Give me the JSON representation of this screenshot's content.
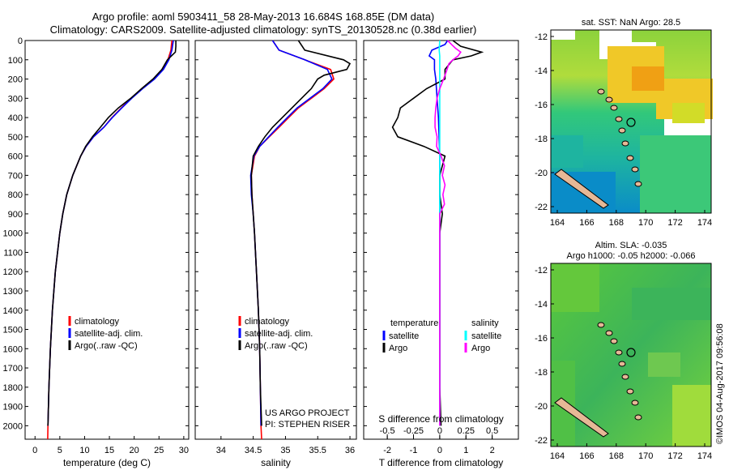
{
  "titles": {
    "line1": "Argo profile: aoml 5903411_58 28-May-2013 16.684S 168.85E (DM data)",
    "line2": "Climatology: CARS2009. Satellite-adjusted climatology: synTS_20130528.nc (0.38d earlier)"
  },
  "depth_ticks": [
    0,
    100,
    200,
    300,
    400,
    500,
    600,
    700,
    800,
    900,
    1000,
    1100,
    1200,
    1300,
    1400,
    1500,
    1600,
    1700,
    1800,
    1900,
    2000
  ],
  "colors": {
    "climatology": "#ff0000",
    "satellite": "#0000ff",
    "argo": "#000000",
    "salinity_argo": "#ff00ff",
    "salinity_sat": "#00ffff"
  },
  "chart_data": [
    {
      "type": "line",
      "xlabel": "temperature (deg C)",
      "xlim": [
        -2,
        31
      ],
      "xticks": [
        0,
        5,
        10,
        15,
        20,
        25,
        30
      ],
      "ylim": [
        2070,
        0
      ],
      "legend": [
        "climatology",
        "satellite-adj. clim.",
        "Argo(..raw -QC)"
      ],
      "series": [
        {
          "name": "climatology",
          "depth": [
            0,
            50,
            100,
            150,
            200,
            250,
            300,
            350,
            400,
            450,
            500,
            550,
            600,
            700,
            800,
            900,
            1000,
            1200,
            1400,
            1600,
            1800,
            2000,
            2070
          ],
          "values": [
            27.6,
            27.4,
            26.8,
            25.8,
            24.0,
            21.6,
            19.4,
            17.4,
            15.5,
            13.9,
            11.8,
            10.3,
            9.2,
            7.6,
            6.4,
            5.6,
            5.0,
            4.1,
            3.5,
            3.1,
            2.8,
            2.6,
            2.55
          ]
        },
        {
          "name": "satellite-adj. clim.",
          "depth": [
            0,
            50,
            100,
            150,
            200,
            250,
            300,
            350,
            400,
            450,
            500,
            550,
            600,
            700,
            800,
            900,
            1000,
            1200,
            1400,
            1600,
            1800,
            2000
          ],
          "values": [
            27.9,
            27.6,
            27.0,
            25.9,
            24.1,
            21.7,
            19.5,
            17.5,
            15.6,
            13.9,
            11.8,
            10.3,
            9.2,
            7.6,
            6.4,
            5.6,
            5.0,
            4.1,
            3.5,
            3.1,
            2.8,
            2.6
          ]
        },
        {
          "name": "Argo(..raw -QC)",
          "depth": [
            0,
            30,
            60,
            80,
            100,
            150,
            200,
            250,
            300,
            350,
            400,
            450,
            500,
            550,
            600,
            700,
            800,
            900,
            1000,
            1200,
            1400,
            1600,
            1800,
            2000
          ],
          "values": [
            28.4,
            28.4,
            28.3,
            27.5,
            26.7,
            25.6,
            23.8,
            21.5,
            19.3,
            16.8,
            14.8,
            13.2,
            11.6,
            10.2,
            9.2,
            7.6,
            6.4,
            5.6,
            5.0,
            4.1,
            3.5,
            3.1,
            2.8,
            2.6
          ]
        }
      ]
    },
    {
      "type": "line",
      "xlabel": "salinity",
      "xlim": [
        33.6,
        36.1
      ],
      "xticks": [
        34,
        34.5,
        35,
        35.5,
        36
      ],
      "ylim": [
        2070,
        0
      ],
      "legend": [
        "climatology",
        "satellite-adj. clim.",
        "Argo(..raw -QC)"
      ],
      "annotation": [
        "US ARGO PROJECT",
        "PI: STEPHEN RISER"
      ],
      "series": [
        {
          "name": "climatology",
          "depth": [
            0,
            50,
            100,
            150,
            200,
            250,
            300,
            350,
            400,
            450,
            500,
            550,
            600,
            700,
            800,
            900,
            1000,
            1200,
            1400,
            1600,
            1800,
            2000,
            2070
          ],
          "values": [
            34.8,
            34.9,
            35.3,
            35.7,
            35.75,
            35.6,
            35.4,
            35.2,
            35.05,
            34.9,
            34.75,
            34.6,
            34.52,
            34.47,
            34.48,
            34.5,
            34.52,
            34.55,
            34.58,
            34.6,
            34.61,
            34.62,
            34.63
          ]
        },
        {
          "name": "satellite-adj. clim.",
          "depth": [
            0,
            50,
            100,
            150,
            200,
            250,
            300,
            350,
            400,
            450,
            500,
            550,
            600,
            700,
            800,
            900,
            1000,
            1200,
            1400,
            1600,
            1800,
            2000
          ],
          "values": [
            34.8,
            34.9,
            35.3,
            35.65,
            35.72,
            35.58,
            35.38,
            35.18,
            35.03,
            34.88,
            34.74,
            34.6,
            34.51,
            34.46,
            34.47,
            34.5,
            34.52,
            34.55,
            34.58,
            34.6,
            34.61,
            34.62
          ]
        },
        {
          "name": "Argo(..raw -QC)",
          "depth": [
            0,
            50,
            100,
            120,
            150,
            180,
            200,
            250,
            300,
            350,
            400,
            450,
            500,
            550,
            600,
            700,
            800,
            900,
            1000,
            1200,
            1400,
            1600,
            1800,
            2000
          ],
          "values": [
            35.2,
            35.3,
            35.9,
            36.0,
            35.95,
            35.6,
            35.5,
            35.4,
            35.25,
            35.1,
            34.95,
            34.8,
            34.68,
            34.58,
            34.5,
            34.47,
            34.48,
            34.5,
            34.52,
            34.55,
            34.58,
            34.6,
            34.61,
            34.63
          ]
        }
      ]
    },
    {
      "type": "line",
      "xlabel": "T difference from climatology",
      "xlabel_top": "S difference from climatology",
      "xlim": [
        -2.9,
        3.0
      ],
      "xticks": [
        -2,
        -1,
        0,
        1,
        2
      ],
      "top_ticks": [
        -0.5,
        -0.25,
        0,
        0.25,
        0.5
      ],
      "top_tick_labels": [
        "-0.5",
        "-0.25",
        "0",
        "0.25",
        "0.5"
      ],
      "ylim": [
        2070,
        0
      ],
      "legend_headers": [
        "temperature",
        "salinity"
      ],
      "legend_left": [
        "satellite",
        "Argo"
      ],
      "legend_right": [
        "satellite",
        "Argo"
      ],
      "series": [
        {
          "name": "temperature satellite",
          "depth": [
            0,
            20,
            50,
            80,
            100,
            150,
            200,
            300,
            400,
            600,
            1000,
            1500,
            2000
          ],
          "values": [
            0.3,
            0.2,
            -0.3,
            -0.4,
            -0.2,
            -0.2,
            -0.15,
            -0.1,
            -0.05,
            0,
            0,
            0,
            0
          ]
        },
        {
          "name": "temperature Argo",
          "depth": [
            0,
            30,
            60,
            80,
            100,
            150,
            200,
            250,
            300,
            350,
            400,
            450,
            500,
            550,
            600,
            700,
            800,
            900,
            1000,
            1500,
            1800,
            2000
          ],
          "values": [
            0.5,
            0.8,
            1.6,
            1.2,
            0.5,
            0.2,
            0.2,
            -0.5,
            -1.0,
            -1.5,
            -1.6,
            -1.8,
            -1.6,
            -0.6,
            0.2,
            0.0,
            0.0,
            0.1,
            0.0,
            0.0,
            0.0,
            0.05
          ]
        },
        {
          "name": "salinity satellite",
          "depth": [
            0,
            50,
            80,
            100,
            150,
            200,
            300,
            400,
            600,
            800,
            1000,
            1500,
            2000
          ],
          "values": [
            0.0,
            -0.02,
            0.0,
            0.0,
            0.0,
            0.0,
            0.0,
            0.0,
            0.0,
            0.0,
            0.0,
            0.0,
            0.0
          ]
        },
        {
          "name": "salinity Argo",
          "depth": [
            0,
            20,
            40,
            60,
            80,
            100,
            120,
            150,
            200,
            250,
            300,
            350,
            400,
            450,
            500,
            550,
            600,
            650,
            700,
            750,
            800,
            850,
            900,
            1000,
            1500,
            2000
          ],
          "values": [
            0.3,
            0.45,
            0.6,
            0.8,
            0.7,
            0.5,
            0.35,
            0.28,
            0.15,
            0.0,
            -0.1,
            -0.15,
            -0.18,
            -0.18,
            -0.1,
            -0.12,
            0.05,
            0.18,
            0.1,
            0.2,
            0.12,
            0.18,
            0.0,
            0.0,
            0.0,
            0.0
          ]
        }
      ]
    }
  ],
  "maps": {
    "sst": {
      "title": "sat. SST: NaN Argo: 28.5",
      "lat_ticks": [
        "-12",
        "-14",
        "-16",
        "-18",
        "-20",
        "-22"
      ],
      "lon_ticks": [
        "164",
        "166",
        "168",
        "170",
        "172",
        "174"
      ]
    },
    "sla": {
      "title1": "Altim. SLA: -0.035",
      "title2": "Argo h1000: -0.05 h2000: -0.066",
      "lat_ticks": [
        "-12",
        "-14",
        "-16",
        "-18",
        "-20",
        "-22"
      ],
      "lon_ticks": [
        "164",
        "166",
        "168",
        "170",
        "172",
        "174"
      ]
    }
  },
  "credit": "©IMOS 04-Aug-2017 09:56:08"
}
